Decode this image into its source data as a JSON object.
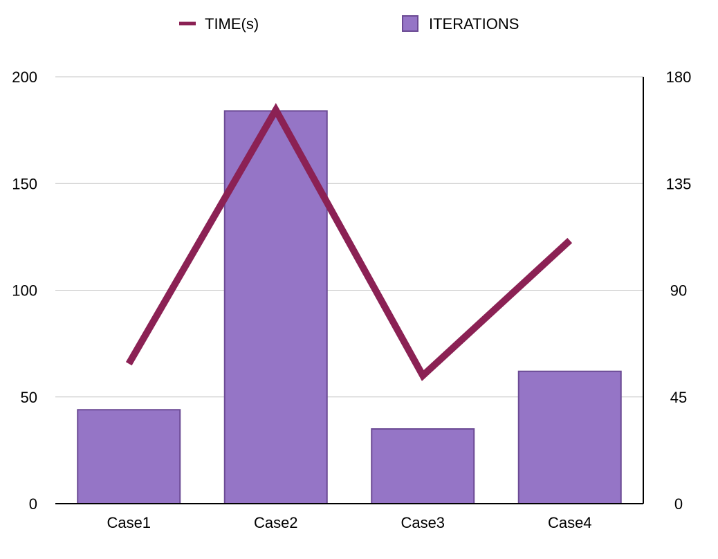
{
  "chart_data": {
    "type": "bar",
    "title": "",
    "xlabel": "",
    "ylabel": "",
    "categories": [
      "Case1",
      "Case2",
      "Case3",
      "Case4"
    ],
    "y_left": {
      "ylim": [
        0,
        200
      ],
      "ticks": [
        "0",
        "50",
        "100",
        "150",
        "200"
      ]
    },
    "y_right": {
      "ylim": [
        0,
        180
      ],
      "ticks": [
        "0",
        "45",
        "90",
        "135",
        "180"
      ]
    },
    "series": [
      {
        "name": "ITERATIONS",
        "type": "bar",
        "axis": "left",
        "values": [
          44,
          184,
          35,
          62
        ],
        "color": "#9575c6",
        "edge_color": "#6b4a94"
      },
      {
        "name": "TIME(s)",
        "type": "line",
        "axis": "right",
        "values": [
          59,
          166,
          54,
          111
        ],
        "color": "#8b2154"
      }
    ],
    "grid": true,
    "legend_position": "top"
  }
}
